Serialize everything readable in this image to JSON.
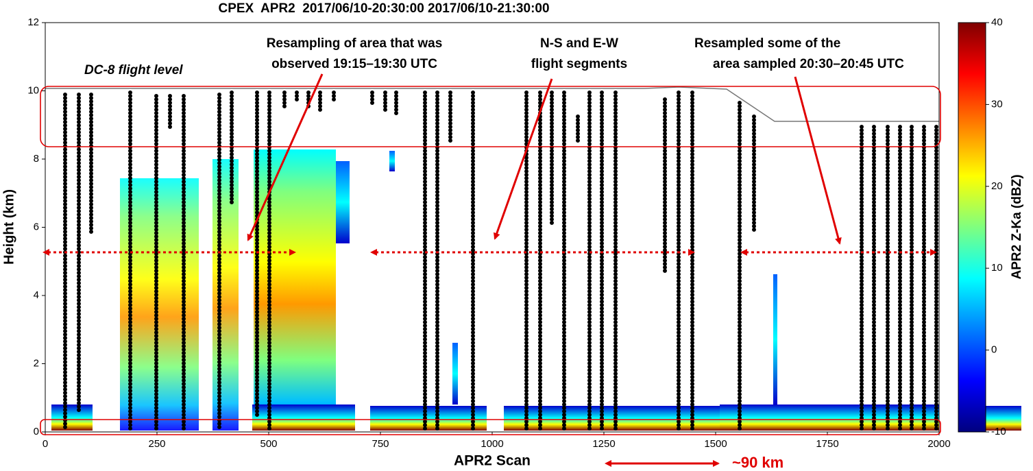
{
  "chart_data": {
    "type": "radar-curtain",
    "title": "CPEX  APR2  2017/06/10-20:30:00 2017/06/10-21:30:00",
    "xlabel": "APR2 Scan",
    "ylabel": "Height (km)",
    "xlim": [
      0,
      2000
    ],
    "xticks": [
      0,
      250,
      500,
      750,
      1000,
      1250,
      1500,
      1750,
      2000
    ],
    "ylim": [
      0,
      12
    ],
    "yticks": [
      0,
      2,
      4,
      6,
      8,
      10,
      12
    ],
    "colorbar": {
      "label": "APR2 Z-Ka (dBZ)",
      "lim": [
        -10,
        40
      ],
      "ticks": [
        -10,
        0,
        10,
        20,
        30,
        40
      ],
      "colormap": [
        "#00007f",
        "#0000ff",
        "#007fff",
        "#00ffff",
        "#7fff7f",
        "#ffff00",
        "#ff7f00",
        "#ff0000",
        "#7f0000"
      ]
    },
    "flight_level_label": "DC-8 flight level",
    "annotations": [
      {
        "lines": [
          "Resampling of area that was",
          "observed 19:15–19:30 UTC"
        ]
      },
      {
        "lines": [
          "N-S and E-W",
          "flight segments"
        ]
      },
      {
        "lines": [
          "Resampled some of the",
          "area sampled 20:30–20:45 UTC"
        ]
      }
    ],
    "scale_label": "~90 km"
  }
}
